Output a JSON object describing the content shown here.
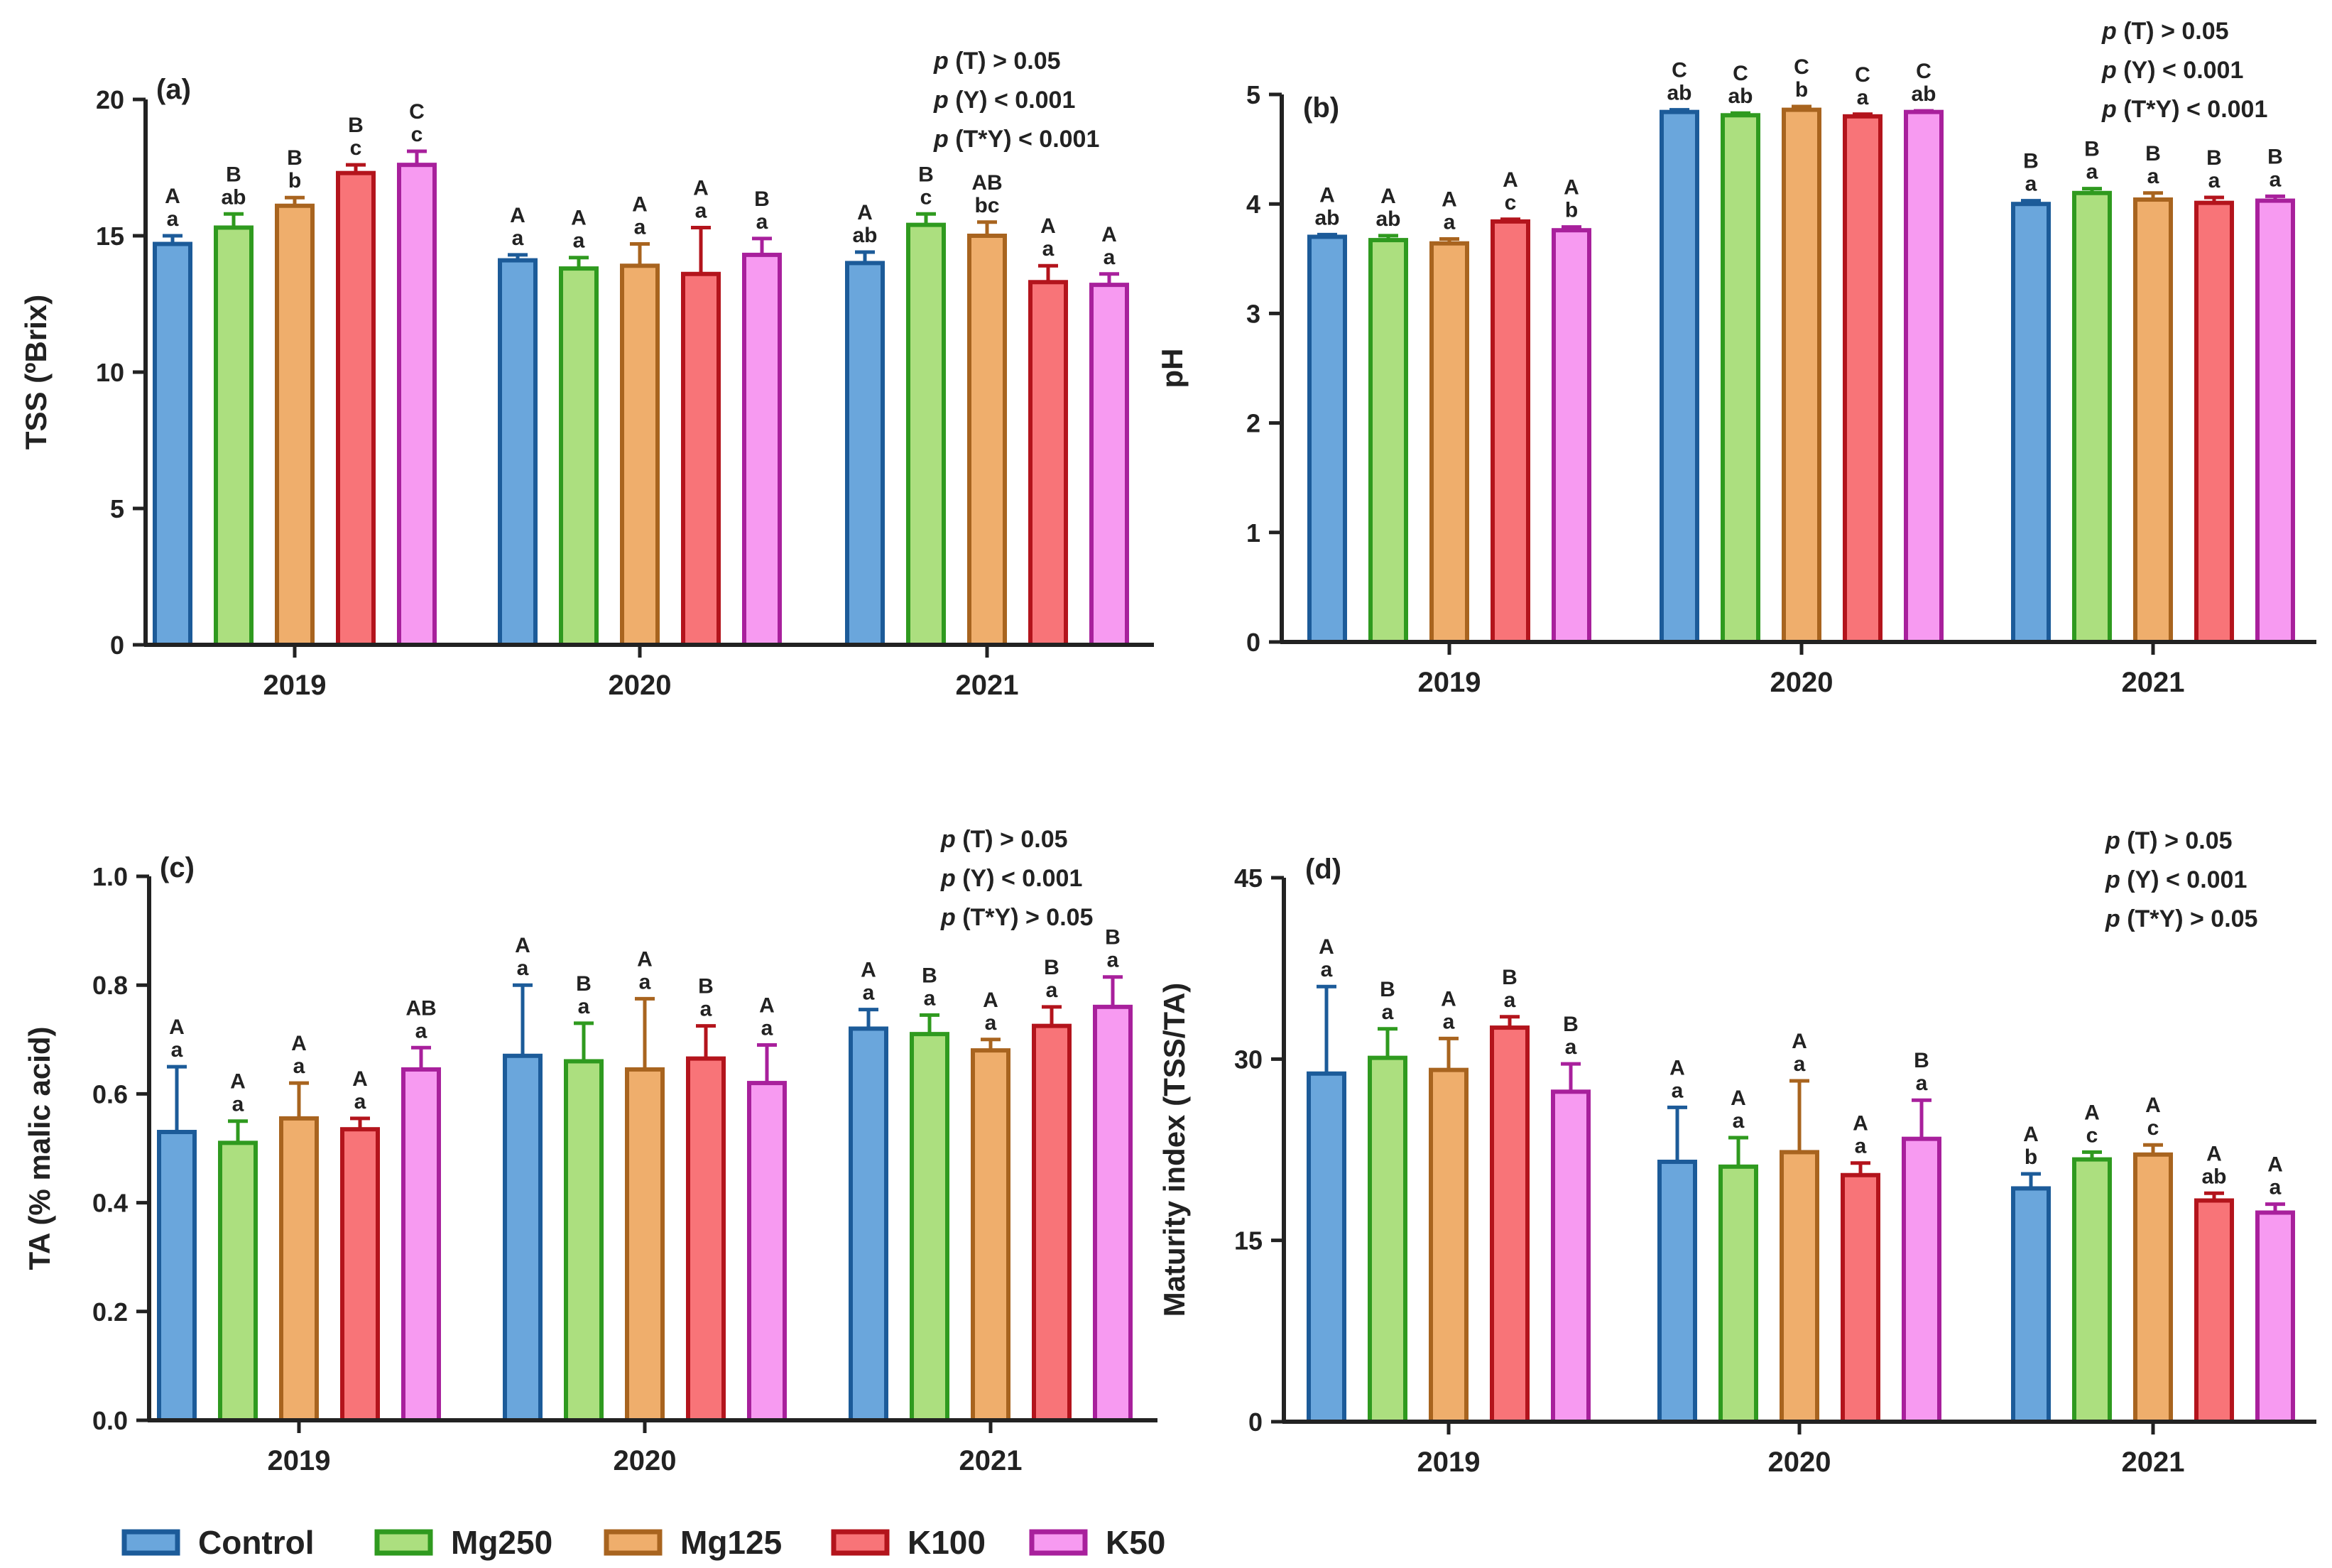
{
  "legend": [
    {
      "name": "Control",
      "fill": "#6aa6dc",
      "stroke": "#1c5b99"
    },
    {
      "name": "Mg250",
      "fill": "#acdf7f",
      "stroke": "#2f9a1f"
    },
    {
      "name": "Mg125",
      "fill": "#efae6c",
      "stroke": "#a8641f"
    },
    {
      "name": "K100",
      "fill": "#f87478",
      "stroke": "#b3141c"
    },
    {
      "name": "K50",
      "fill": "#f79af1",
      "stroke": "#a8209c"
    }
  ],
  "chart_data": [
    {
      "type": "bar",
      "panel": "(a)",
      "ylabel": "TSS (ºBrix)",
      "ylim": [
        0,
        20
      ],
      "yticks": [
        "0",
        "5",
        "10",
        "15",
        "20"
      ],
      "categories": [
        "2019",
        "2020",
        "2021"
      ],
      "pvalues": [
        "(T) > 0.05",
        "(Y) < 0.001",
        "(T*Y) < 0.001"
      ],
      "series": [
        {
          "name": "Control",
          "values": [
            14.7,
            14.1,
            14.0
          ],
          "errors": [
            0.3,
            0.2,
            0.4
          ],
          "upper": [
            "A",
            "A",
            "A"
          ],
          "lower": [
            "a",
            "a",
            "ab"
          ]
        },
        {
          "name": "Mg250",
          "values": [
            15.3,
            13.8,
            15.4
          ],
          "errors": [
            0.5,
            0.4,
            0.4
          ],
          "upper": [
            "B",
            "A",
            "B"
          ],
          "lower": [
            "ab",
            "a",
            "c"
          ]
        },
        {
          "name": "Mg125",
          "values": [
            16.1,
            13.9,
            15.0
          ],
          "errors": [
            0.3,
            0.8,
            0.5
          ],
          "upper": [
            "B",
            "A",
            "AB"
          ],
          "lower": [
            "b",
            "a",
            "bc"
          ]
        },
        {
          "name": "K100",
          "values": [
            17.3,
            13.6,
            13.3
          ],
          "errors": [
            0.3,
            1.7,
            0.6
          ],
          "upper": [
            "B",
            "A",
            "A"
          ],
          "lower": [
            "c",
            "a",
            "a"
          ]
        },
        {
          "name": "K50",
          "values": [
            17.6,
            14.3,
            13.2
          ],
          "errors": [
            0.5,
            0.6,
            0.4
          ],
          "upper": [
            "C",
            "B",
            "A"
          ],
          "lower": [
            "c",
            "a",
            "a"
          ]
        }
      ]
    },
    {
      "type": "bar",
      "panel": "(b)",
      "ylabel": "pH",
      "ylim": [
        0,
        5
      ],
      "yticks": [
        "0",
        "1",
        "2",
        "3",
        "4",
        "5"
      ],
      "categories": [
        "2019",
        "2020",
        "2021"
      ],
      "pvalues": [
        "(T) > 0.05",
        "(Y) < 0.001",
        "(T*Y) < 0.001"
      ],
      "series": [
        {
          "name": "Control",
          "values": [
            3.7,
            4.84,
            4.0
          ],
          "errors": [
            0.02,
            0.02,
            0.03
          ],
          "upper": [
            "A",
            "C",
            "B"
          ],
          "lower": [
            "ab",
            "ab",
            "a"
          ]
        },
        {
          "name": "Mg250",
          "values": [
            3.67,
            4.81,
            4.1
          ],
          "errors": [
            0.04,
            0.02,
            0.04
          ],
          "upper": [
            "A",
            "C",
            "B"
          ],
          "lower": [
            "ab",
            "ab",
            "a"
          ]
        },
        {
          "name": "Mg125",
          "values": [
            3.64,
            4.86,
            4.04
          ],
          "errors": [
            0.04,
            0.03,
            0.06
          ],
          "upper": [
            "A",
            "C",
            "B"
          ],
          "lower": [
            "a",
            "b",
            "a"
          ]
        },
        {
          "name": "K100",
          "values": [
            3.84,
            4.8,
            4.01
          ],
          "errors": [
            0.02,
            0.02,
            0.05
          ],
          "upper": [
            "A",
            "C",
            "B"
          ],
          "lower": [
            "c",
            "a",
            "a"
          ]
        },
        {
          "name": "K50",
          "values": [
            3.76,
            4.84,
            4.03
          ],
          "errors": [
            0.03,
            0.01,
            0.04
          ],
          "upper": [
            "A",
            "C",
            "B"
          ],
          "lower": [
            "b",
            "ab",
            "a"
          ]
        }
      ]
    },
    {
      "type": "bar",
      "panel": "(c)",
      "ylabel": "TA (% malic acid)",
      "ylim": [
        0,
        1.0
      ],
      "yticks": [
        "0.0",
        "0.2",
        "0.4",
        "0.6",
        "0.8",
        "1.0"
      ],
      "categories": [
        "2019",
        "2020",
        "2021"
      ],
      "pvalues": [
        "(T) > 0.05",
        "(Y) < 0.001",
        "(T*Y) > 0.05"
      ],
      "series": [
        {
          "name": "Control",
          "values": [
            0.53,
            0.67,
            0.72
          ],
          "errors": [
            0.12,
            0.13,
            0.035
          ],
          "upper": [
            "A",
            "A",
            "A"
          ],
          "lower": [
            "a",
            "a",
            "a"
          ]
        },
        {
          "name": "Mg250",
          "values": [
            0.51,
            0.66,
            0.71
          ],
          "errors": [
            0.04,
            0.07,
            0.035
          ],
          "upper": [
            "A",
            "B",
            "B"
          ],
          "lower": [
            "a",
            "a",
            "a"
          ]
        },
        {
          "name": "Mg125",
          "values": [
            0.555,
            0.645,
            0.68
          ],
          "errors": [
            0.065,
            0.13,
            0.02
          ],
          "upper": [
            "A",
            "A",
            "A"
          ],
          "lower": [
            "a",
            "a",
            "a"
          ]
        },
        {
          "name": "K100",
          "values": [
            0.535,
            0.665,
            0.725
          ],
          "errors": [
            0.02,
            0.06,
            0.035
          ],
          "upper": [
            "A",
            "B",
            "B"
          ],
          "lower": [
            "a",
            "a",
            "a"
          ]
        },
        {
          "name": "K50",
          "values": [
            0.645,
            0.62,
            0.76
          ],
          "errors": [
            0.04,
            0.07,
            0.055
          ],
          "upper": [
            "AB",
            "A",
            "B"
          ],
          "lower": [
            "a",
            "a",
            "a"
          ]
        }
      ]
    },
    {
      "type": "bar",
      "panel": "(d)",
      "ylabel": "Maturity index (TSS/TA)",
      "ylim": [
        0,
        45
      ],
      "yticks": [
        "0",
        "15",
        "30",
        "45"
      ],
      "categories": [
        "2019",
        "2020",
        "2021"
      ],
      "pvalues": [
        "(T) > 0.05",
        "(Y) < 0.001",
        "(T*Y) > 0.05"
      ],
      "series": [
        {
          "name": "Control",
          "values": [
            28.8,
            21.5,
            19.3
          ],
          "errors": [
            7.2,
            4.5,
            1.2
          ],
          "upper": [
            "A",
            "A",
            "A"
          ],
          "lower": [
            "a",
            "a",
            "b"
          ]
        },
        {
          "name": "Mg250",
          "values": [
            30.1,
            21.1,
            21.7
          ],
          "errors": [
            2.4,
            2.4,
            0.6
          ],
          "upper": [
            "B",
            "A",
            "A"
          ],
          "lower": [
            "a",
            "a",
            "c"
          ]
        },
        {
          "name": "Mg125",
          "values": [
            29.1,
            22.3,
            22.1
          ],
          "errors": [
            2.6,
            5.9,
            0.8
          ],
          "upper": [
            "A",
            "A",
            "A"
          ],
          "lower": [
            "a",
            "a",
            "c"
          ]
        },
        {
          "name": "K100",
          "values": [
            32.6,
            20.4,
            18.3
          ],
          "errors": [
            0.9,
            1.0,
            0.6
          ],
          "upper": [
            "B",
            "A",
            "A"
          ],
          "lower": [
            "a",
            "a",
            "ab"
          ]
        },
        {
          "name": "K50",
          "values": [
            27.3,
            23.4,
            17.3
          ],
          "errors": [
            2.3,
            3.2,
            0.7
          ],
          "upper": [
            "B",
            "B",
            "A"
          ],
          "lower": [
            "a",
            "a",
            "a"
          ]
        }
      ]
    }
  ]
}
